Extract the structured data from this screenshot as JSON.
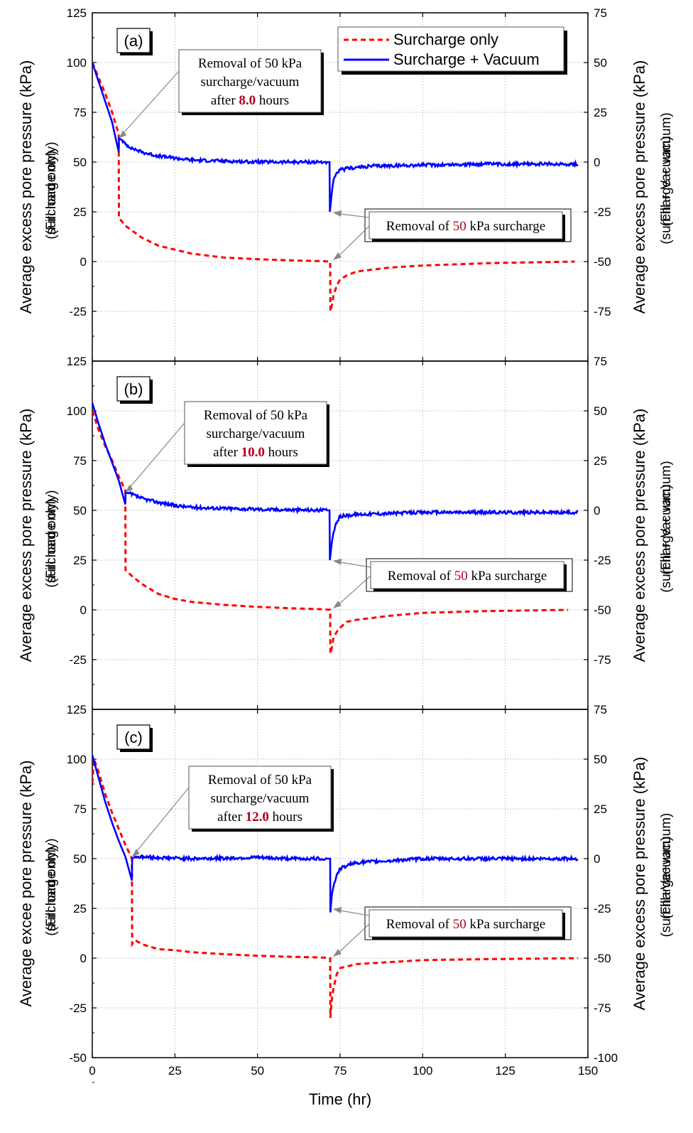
{
  "chart_data": [
    {
      "type": "line",
      "panel_label": "(a)",
      "xlim": [
        0,
        150
      ],
      "x_ticks": [
        "0",
        "25",
        "50",
        "75",
        "100",
        "125",
        "150"
      ],
      "ylim_left": [
        -50,
        125
      ],
      "left_ticks": [
        "125",
        "100",
        "75",
        "50",
        "25",
        "0",
        "-25"
      ],
      "ylim_right": [
        -75,
        75
      ],
      "right_ticks": [
        "75",
        "50",
        "25",
        "0",
        "-25",
        "-50",
        "-75"
      ],
      "ylabel_left": "Average excess pore pressure (kPa)",
      "ylabel_left_sub": "(Fill load only)",
      "ylabel_left_overlap": "(surcharge only)",
      "ylabel_right": "Average excess pore pressure (kPa)",
      "ylabel_right_sub": "(Fill + Vacuum)",
      "ylabel_right_overlap": "(surcharge + vacuum)",
      "grid": true,
      "legend_position": "top-right",
      "removal_time": 8.0,
      "annotation_removal": {
        "line1": "Removal of 50 kPa",
        "line2": "surcharge/vacuum",
        "prefix": "after ",
        "hours": "8.0",
        "suffix": " hours",
        "arrow_to": [
          8.0,
          62
        ]
      },
      "annotation_surcharge": {
        "prefix": "Removal of ",
        "value": "50",
        "suffix": " kPa surcharge",
        "arrow_to": [
          72,
          0
        ]
      },
      "series": [
        {
          "name": "Surcharge only",
          "color": "#ff0000",
          "dash": true,
          "points": [
            [
              0,
              100
            ],
            [
              2,
              92
            ],
            [
              4,
              84
            ],
            [
              6,
              75
            ],
            [
              8,
              64
            ],
            [
              8.05,
              22
            ],
            [
              10,
              18
            ],
            [
              15,
              12
            ],
            [
              20,
              8
            ],
            [
              25,
              6
            ],
            [
              30,
              4
            ],
            [
              40,
              2
            ],
            [
              50,
              1.2
            ],
            [
              60,
              0.6
            ],
            [
              70,
              0.2
            ],
            [
              72,
              0
            ],
            [
              72.05,
              -25
            ],
            [
              72.5,
              -22
            ],
            [
              73,
              -17
            ],
            [
              74,
              -12
            ],
            [
              75,
              -9
            ],
            [
              77,
              -7
            ],
            [
              80,
              -5
            ],
            [
              90,
              -3
            ],
            [
              100,
              -2
            ],
            [
              120,
              -0.8
            ],
            [
              146,
              0
            ]
          ]
        },
        {
          "name": "Surcharge + Vacuum",
          "color": "#0000ff",
          "dash": false,
          "points": [
            [
              0,
              50
            ],
            [
              2,
              40
            ],
            [
              4,
              30
            ],
            [
              6,
              20
            ],
            [
              8,
              5
            ],
            [
              8.05,
              12
            ],
            [
              9,
              11
            ],
            [
              10,
              9
            ],
            [
              12,
              7
            ],
            [
              15,
              5
            ],
            [
              20,
              3
            ],
            [
              25,
              2
            ],
            [
              30,
              1
            ],
            [
              40,
              0.5
            ],
            [
              50,
              0
            ],
            [
              71.8,
              0
            ],
            [
              71.9,
              -25
            ],
            [
              72.5,
              -15
            ],
            [
              73,
              -9
            ],
            [
              74,
              -6
            ],
            [
              75,
              -4
            ],
            [
              78,
              -3
            ],
            [
              85,
              -2
            ],
            [
              100,
              -1.5
            ],
            [
              120,
              -1
            ],
            [
              147,
              -1
            ]
          ]
        }
      ]
    },
    {
      "type": "line",
      "panel_label": "(b)",
      "xlim": [
        0,
        150
      ],
      "x_ticks": [
        "0",
        "25",
        "50",
        "75",
        "100",
        "125",
        "150"
      ],
      "ylim_left": [
        -50,
        125
      ],
      "left_ticks": [
        "125",
        "100",
        "75",
        "50",
        "25",
        "0",
        "-25"
      ],
      "ylim_right": [
        -75,
        75
      ],
      "right_ticks": [
        "75",
        "50",
        "25",
        "0",
        "-25",
        "-50",
        "-75"
      ],
      "ylabel_left": "Average excess pore pressure (kPa)",
      "ylabel_left_sub": "(Fill load only)",
      "ylabel_left_overlap": "(surcharge only)",
      "ylabel_right": "Average excess pore pressure (kPa)",
      "ylabel_right_sub": "(Fill + Vacuum)",
      "ylabel_right_overlap": "(surcharge + vacuum)",
      "grid": true,
      "removal_time": 10.0,
      "annotation_removal": {
        "line1": "Removal of 50 kPa",
        "line2": "surcharge/vacuum",
        "prefix": "after ",
        "hours": "10.0",
        "suffix": " hours",
        "arrow_to": [
          10.0,
          59
        ]
      },
      "annotation_surcharge": {
        "prefix": "Removal of ",
        "value": "50",
        "suffix": " kPa surcharge",
        "arrow_to": [
          72,
          0
        ]
      },
      "series": [
        {
          "name": "Surcharge only",
          "color": "#ff0000",
          "dash": true,
          "points": [
            [
              0,
              100
            ],
            [
              2,
              90
            ],
            [
              4,
              82
            ],
            [
              6,
              75
            ],
            [
              8,
              67
            ],
            [
              10,
              60
            ],
            [
              10.05,
              20
            ],
            [
              12,
              17
            ],
            [
              15,
              13
            ],
            [
              20,
              8
            ],
            [
              25,
              5.5
            ],
            [
              30,
              4
            ],
            [
              40,
              2.5
            ],
            [
              50,
              1.5
            ],
            [
              60,
              0.8
            ],
            [
              70,
              0.3
            ],
            [
              72,
              0
            ],
            [
              72.05,
              -22
            ],
            [
              72.5,
              -19
            ],
            [
              73,
              -14
            ],
            [
              74,
              -11
            ],
            [
              75,
              -9
            ],
            [
              77,
              -6
            ],
            [
              80,
              -5
            ],
            [
              90,
              -3
            ],
            [
              100,
              -1.5
            ],
            [
              120,
              -0.6
            ],
            [
              144,
              0
            ]
          ]
        },
        {
          "name": "Surcharge + Vacuum",
          "color": "#0000ff",
          "dash": false,
          "points": [
            [
              0,
              54
            ],
            [
              2,
              43
            ],
            [
              4,
              33
            ],
            [
              6,
              24
            ],
            [
              8,
              15
            ],
            [
              10,
              3
            ],
            [
              10.05,
              9
            ],
            [
              12,
              8
            ],
            [
              15,
              6
            ],
            [
              20,
              4
            ],
            [
              25,
              2.5
            ],
            [
              30,
              1.5
            ],
            [
              40,
              1
            ],
            [
              50,
              0.5
            ],
            [
              71.8,
              0
            ],
            [
              71.9,
              -25
            ],
            [
              72.5,
              -16
            ],
            [
              73,
              -11
            ],
            [
              74,
              -6
            ],
            [
              75,
              -3
            ],
            [
              80,
              -2
            ],
            [
              100,
              -1
            ],
            [
              147,
              -1
            ]
          ]
        }
      ]
    },
    {
      "type": "line",
      "panel_label": "(c)",
      "xlim": [
        0,
        150
      ],
      "x_ticks": [
        "0",
        "25",
        "50",
        "75",
        "100",
        "125",
        "150"
      ],
      "xlabel": "Time (hr)",
      "ylim_left": [
        -50,
        125
      ],
      "left_ticks": [
        "125",
        "100",
        "75",
        "50",
        "25",
        "0",
        "-25",
        "-50"
      ],
      "ylim_right": [
        -100,
        75
      ],
      "right_ticks": [
        "75",
        "50",
        "25",
        "0",
        "-25",
        "-50",
        "-75",
        "-100"
      ],
      "ylabel_left": "Average excee pore pressure (kPa)",
      "ylabel_left_sub": "(Fill load only)",
      "ylabel_left_overlap": "(surcharge only)",
      "ylabel_right": "Average excess pore pressure (kPa)",
      "ylabel_right_sub": "(Fill+Vacuum)",
      "ylabel_right_overlap": "(surcharge+vacuum)",
      "grid": true,
      "removal_time": 12.0,
      "annotation_removal": {
        "line1": "Removal of 50 kPa",
        "line2": "surcharge/vacuum",
        "prefix": "after ",
        "hours": "12.0",
        "suffix": " hours",
        "arrow_to": [
          12.0,
          51
        ]
      },
      "annotation_surcharge": {
        "prefix": "Removal of ",
        "value": "50",
        "suffix": " kPa surcharge",
        "arrow_to": [
          72,
          0
        ]
      },
      "series": [
        {
          "name": "Surcharge only",
          "color": "#ff0000",
          "dash": true,
          "points": [
            [
              0,
              88
            ],
            [
              0.5,
              100
            ],
            [
              2,
              93
            ],
            [
              4,
              82
            ],
            [
              6,
              73
            ],
            [
              8,
              65
            ],
            [
              10,
              57
            ],
            [
              12,
              50
            ],
            [
              12.05,
              7
            ],
            [
              13,
              9
            ],
            [
              15,
              7
            ],
            [
              20,
              4.5
            ],
            [
              25,
              4
            ],
            [
              30,
              3
            ],
            [
              40,
              2
            ],
            [
              50,
              1.2
            ],
            [
              60,
              0.7
            ],
            [
              70,
              0.3
            ],
            [
              72,
              0
            ],
            [
              72.05,
              -30
            ],
            [
              72.5,
              -21
            ],
            [
              73,
              -15
            ],
            [
              74,
              -8
            ],
            [
              75,
              -5
            ],
            [
              80,
              -3
            ],
            [
              90,
              -2
            ],
            [
              100,
              -1
            ],
            [
              120,
              -0.5
            ],
            [
              147,
              0
            ]
          ]
        },
        {
          "name": "Surcharge + Vacuum",
          "color": "#0000ff",
          "dash": false,
          "points": [
            [
              0,
              52
            ],
            [
              2,
              40
            ],
            [
              4,
              28
            ],
            [
              6,
              18
            ],
            [
              8,
              9
            ],
            [
              10,
              1
            ],
            [
              12,
              -11
            ],
            [
              12.05,
              0
            ],
            [
              13,
              1
            ],
            [
              20,
              0.5
            ],
            [
              30,
              0
            ],
            [
              50,
              0.5
            ],
            [
              60,
              0
            ],
            [
              72,
              0
            ],
            [
              72.05,
              -27
            ],
            [
              72.5,
              -18
            ],
            [
              73,
              -14
            ],
            [
              74,
              -8
            ],
            [
              75,
              -5
            ],
            [
              78,
              -3
            ],
            [
              80,
              -2
            ],
            [
              90,
              -1
            ],
            [
              100,
              0
            ],
            [
              147,
              0
            ]
          ]
        }
      ]
    }
  ]
}
